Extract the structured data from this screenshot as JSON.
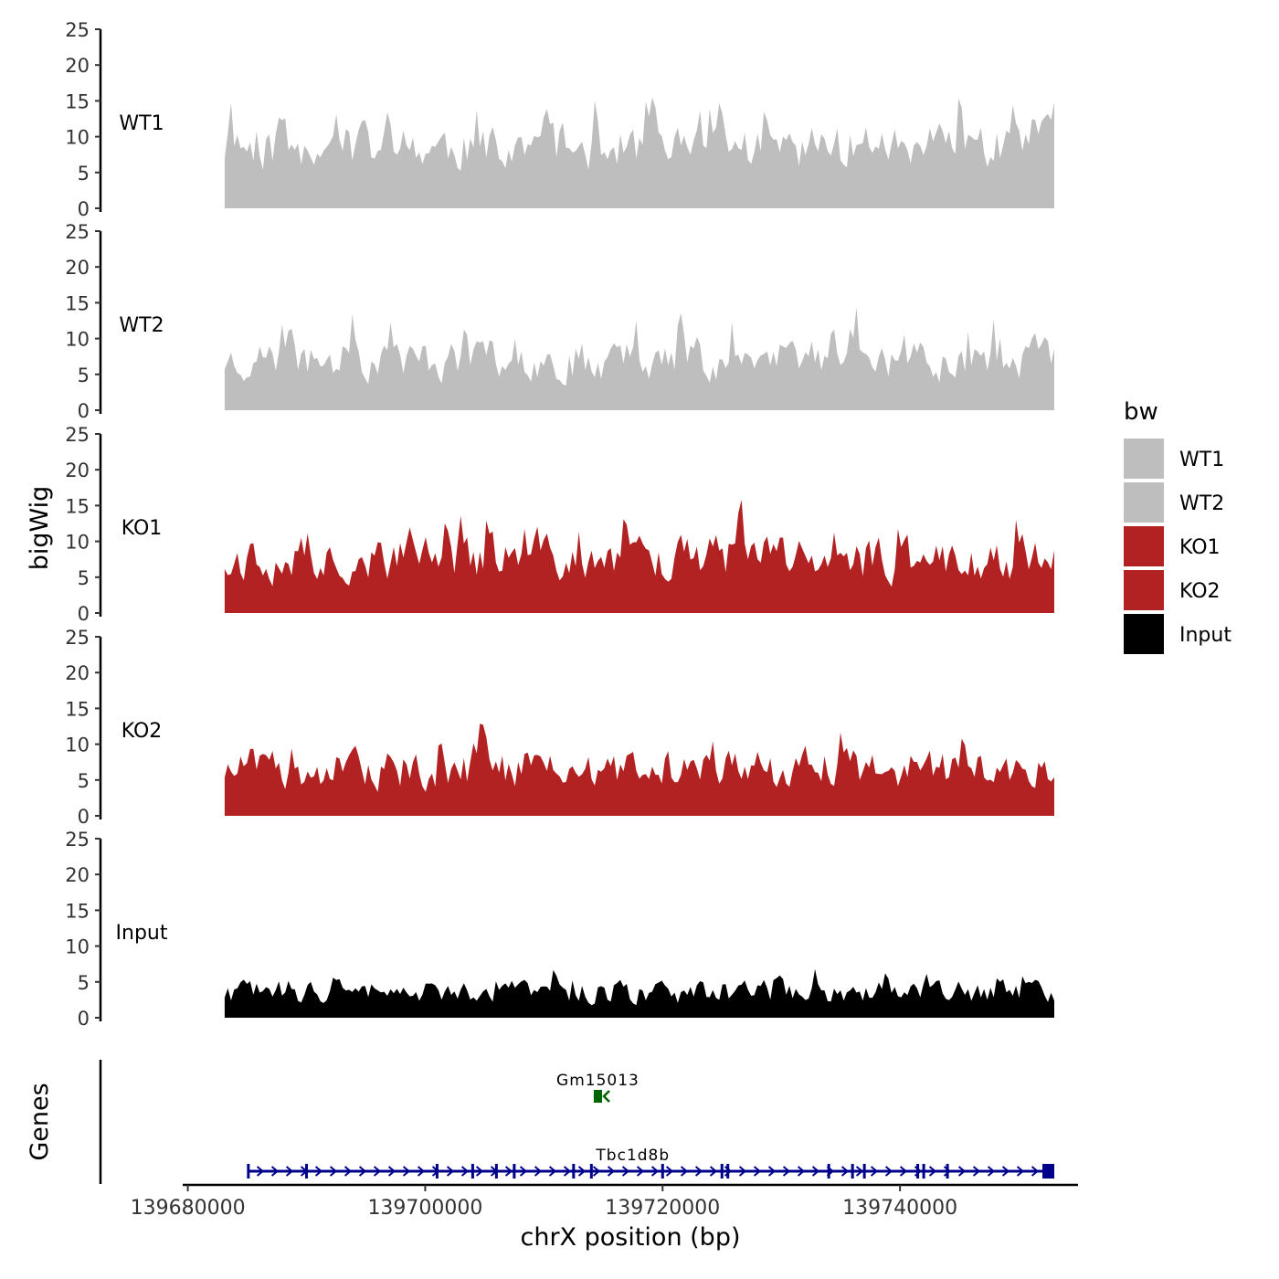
{
  "chart_data": {
    "type": "area",
    "ylabel": "bigWig",
    "xlabel": "chrX position (bp)",
    "genes_label": "Genes",
    "ylim": [
      0,
      25
    ],
    "yticks": [
      "0",
      "5",
      "10",
      "15",
      "20",
      "25"
    ],
    "xlim": [
      139679800,
      139755000
    ],
    "xticks": [
      {
        "value": 139680000,
        "label": "139680000"
      },
      {
        "value": 139700000,
        "label": "139700000"
      },
      {
        "value": 139720000,
        "label": "139720000"
      },
      {
        "value": 139740000,
        "label": "139740000"
      }
    ],
    "legend": {
      "title": "bw",
      "entries": [
        {
          "label": "WT1",
          "color": "#BEBEBE"
        },
        {
          "label": "WT2",
          "color": "#BEBEBE"
        },
        {
          "label": "KO1",
          "color": "#B22222"
        },
        {
          "label": "KO2",
          "color": "#B22222"
        },
        {
          "label": "Input",
          "color": "#000000"
        }
      ]
    },
    "series": [
      {
        "name": "WT1",
        "color": "#BEBEBE",
        "x_start": 139683100,
        "x_end": 139753000,
        "seed": 11,
        "base": 8.5,
        "amp": 8.0,
        "spike": 0.55
      },
      {
        "name": "WT2",
        "color": "#BEBEBE",
        "x_start": 139683100,
        "x_end": 139753000,
        "seed": 23,
        "base": 7.0,
        "amp": 7.0,
        "spike": 0.45
      },
      {
        "name": "KO1",
        "color": "#B22222",
        "x_start": 139683100,
        "x_end": 139753000,
        "seed": 37,
        "base": 7.5,
        "amp": 7.5,
        "spike": 0.55
      },
      {
        "name": "KO2",
        "color": "#B22222",
        "x_start": 139683100,
        "x_end": 139753000,
        "seed": 51,
        "base": 6.5,
        "amp": 6.5,
        "spike": 0.4
      },
      {
        "name": "Input",
        "color": "#000000",
        "x_start": 139683100,
        "x_end": 139753000,
        "seed": 73,
        "base": 3.5,
        "amp": 4.0,
        "spike": 0.35
      }
    ],
    "genes": [
      {
        "name": "Gm15013",
        "start": 139714200,
        "end": 139714900,
        "strand": "-",
        "color": "#006400",
        "row": 0
      },
      {
        "name": "Tbc1d8b",
        "start": 139685000,
        "end": 139753000,
        "strand": "+",
        "color": "#00008B",
        "row": 1,
        "exons": [
          139685100,
          139690000,
          139701000,
          139704000,
          139706000,
          139707500,
          139712500,
          139714000,
          139720000,
          139725000,
          139725500,
          139734000,
          139736000,
          139737000,
          139741500,
          139742000,
          139744000
        ],
        "last_exon": [
          139752000,
          139753000
        ]
      }
    ]
  }
}
